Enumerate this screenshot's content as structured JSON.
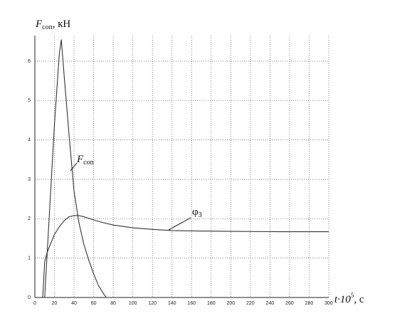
{
  "chart_data": {
    "type": "line",
    "title": {
      "symbol": "F",
      "subscript": "con",
      "unit": ", кН"
    },
    "x_label": {
      "symbol": "t·10",
      "superscript": "5",
      "unit": ", c"
    },
    "annotations": [
      {
        "symbol": "F",
        "subscript": "con"
      },
      {
        "symbol": "φ",
        "subscript": "3"
      }
    ],
    "series": [
      {
        "color": "#333333",
        "x": [
          10,
          15,
          20,
          25,
          27,
          30,
          35,
          40,
          45,
          50,
          55,
          60,
          65,
          70,
          73
        ],
        "values": [
          0,
          2.2,
          4.4,
          6.2,
          6.55,
          5.6,
          4.1,
          2.7,
          1.9,
          1.35,
          0.95,
          0.6,
          0.3,
          0.1,
          0
        ]
      },
      {
        "color": "#333333",
        "x": [
          8,
          10,
          12,
          15,
          20,
          25,
          30,
          35,
          40,
          45,
          50,
          60,
          70,
          80,
          100,
          120,
          140,
          160,
          200,
          250,
          300
        ],
        "values": [
          0,
          0.9,
          1.1,
          1.3,
          1.6,
          1.8,
          1.95,
          2.05,
          2.08,
          2.08,
          2.05,
          1.97,
          1.9,
          1.84,
          1.77,
          1.73,
          1.7,
          1.69,
          1.68,
          1.67,
          1.67
        ]
      }
    ],
    "xlim": [
      0,
      300
    ],
    "xticks": [
      0,
      20,
      40,
      60,
      80,
      100,
      120,
      140,
      160,
      180,
      200,
      220,
      240,
      260,
      280,
      300
    ],
    "ylim": [
      0,
      6.65
    ],
    "yticks": [
      0,
      1,
      2,
      3,
      4,
      5,
      6
    ],
    "grid": true
  }
}
